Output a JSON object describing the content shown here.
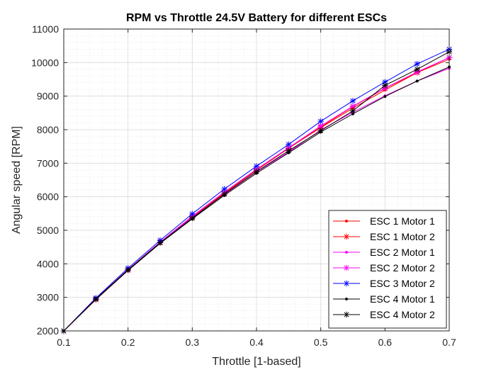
{
  "chart_data": {
    "type": "line",
    "title": "RPM vs Throttle 24.5V Battery for different ESCs",
    "xlabel": "Throttle [1-based]",
    "ylabel": "Angular speed [RPM]",
    "xlim": [
      0.1,
      0.7
    ],
    "ylim": [
      2000,
      11000
    ],
    "xticks": [
      0.1,
      0.2,
      0.3,
      0.4,
      0.5,
      0.6,
      0.7
    ],
    "xtick_labels": [
      "0.1",
      "0.2",
      "0.3",
      "0.4",
      "0.5",
      "0.6",
      "0.7"
    ],
    "yticks": [
      2000,
      3000,
      4000,
      5000,
      6000,
      7000,
      8000,
      9000,
      10000,
      11000
    ],
    "ytick_labels": [
      "2000",
      "3000",
      "4000",
      "5000",
      "6000",
      "7000",
      "8000",
      "9000",
      "10000",
      "11000"
    ],
    "grid": "major and minor",
    "legend_position": "lower-right",
    "x": [
      0.1,
      0.15,
      0.2,
      0.25,
      0.3,
      0.35,
      0.4,
      0.45,
      0.5,
      0.55,
      0.6,
      0.65,
      0.7
    ],
    "series": [
      {
        "name": "ESC 1 Motor 1",
        "color": "#ff0000",
        "marker": "dot",
        "values": [
          2000,
          2940,
          3820,
          4640,
          5400,
          6110,
          6800,
          7450,
          8060,
          8640,
          9180,
          9700,
          10100
        ]
      },
      {
        "name": "ESC 1 Motor 2",
        "color": "#ff0000",
        "marker": "star",
        "values": [
          2000,
          2930,
          3810,
          4630,
          5390,
          6100,
          6790,
          7440,
          8080,
          8690,
          9230,
          9700,
          10150
        ]
      },
      {
        "name": "ESC 2 Motor 1",
        "color": "#ff00ff",
        "marker": "dot",
        "values": [
          2000,
          2950,
          3830,
          4640,
          5380,
          6070,
          6740,
          7330,
          7990,
          8520,
          9010,
          9450,
          9830
        ]
      },
      {
        "name": "ESC 2 Motor 2",
        "color": "#ff00ff",
        "marker": "star",
        "values": [
          2000,
          2950,
          3830,
          4650,
          5420,
          6140,
          6820,
          7460,
          8110,
          8700,
          9240,
          9720,
          10150
        ]
      },
      {
        "name": "ESC 3 Motor 2",
        "color": "#0000ff",
        "marker": "star",
        "values": [
          2000,
          2980,
          3870,
          4700,
          5490,
          6230,
          6910,
          7560,
          8250,
          8860,
          9420,
          9960,
          10400
        ]
      },
      {
        "name": "ESC 4 Motor 1",
        "color": "#000000",
        "marker": "dot",
        "values": [
          2000,
          2940,
          3800,
          4610,
          5340,
          6040,
          6700,
          7310,
          7930,
          8470,
          8990,
          9450,
          9870
        ]
      },
      {
        "name": "ESC 4 Motor 2",
        "color": "#000000",
        "marker": "star",
        "values": [
          2000,
          2950,
          3820,
          4630,
          5360,
          6080,
          6750,
          7370,
          7970,
          8560,
          9320,
          9800,
          10320
        ]
      }
    ]
  }
}
